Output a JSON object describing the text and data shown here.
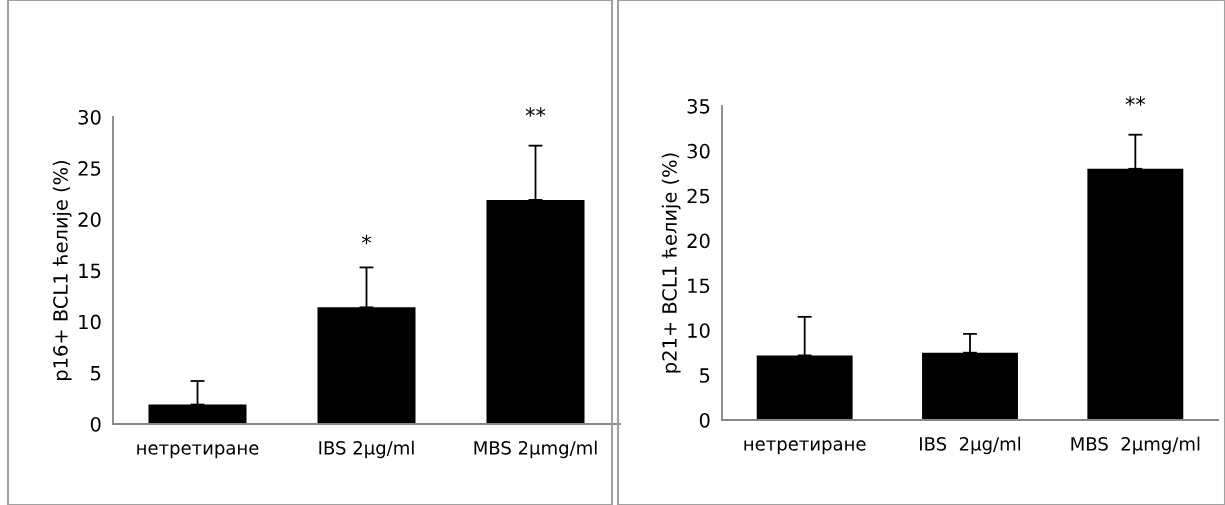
{
  "chart_data": [
    {
      "type": "bar",
      "ylabel": "p16+ BCL1 ћелије (%)",
      "categories": [
        "нетретиране",
        "IBS 2µg/ml",
        "MBS 2µmg/ml"
      ],
      "values": [
        1.9,
        11.4,
        21.9
      ],
      "color": "#000000",
      "errors": [
        [
          1.9,
          4.2
        ],
        [
          11.4,
          15.3
        ],
        [
          21.9,
          27.2
        ]
      ],
      "ylim": [
        0,
        30
      ],
      "yticks": [
        0,
        5,
        10,
        15,
        20,
        25,
        30
      ],
      "grid": false,
      "legend": false,
      "annotations": [
        "*",
        "**"
      ]
    },
    {
      "type": "bar",
      "ylabel": "p21+ BCL1 ћелије (%)",
      "categories": [
        "нетретиране",
        "IBS  2µg/ml",
        "MBS  2µmg/ml"
      ],
      "values": [
        7.2,
        7.5,
        28.0
      ],
      "color": "#000000",
      "errors": [
        [
          7.2,
          11.5
        ],
        [
          7.5,
          9.6
        ],
        [
          28.0,
          31.8
        ]
      ],
      "ylim": [
        0,
        35
      ],
      "yticks": [
        0,
        5,
        10,
        15,
        20,
        25,
        30,
        35
      ],
      "grid": false,
      "legend": false,
      "annotations": [
        "**"
      ]
    }
  ]
}
